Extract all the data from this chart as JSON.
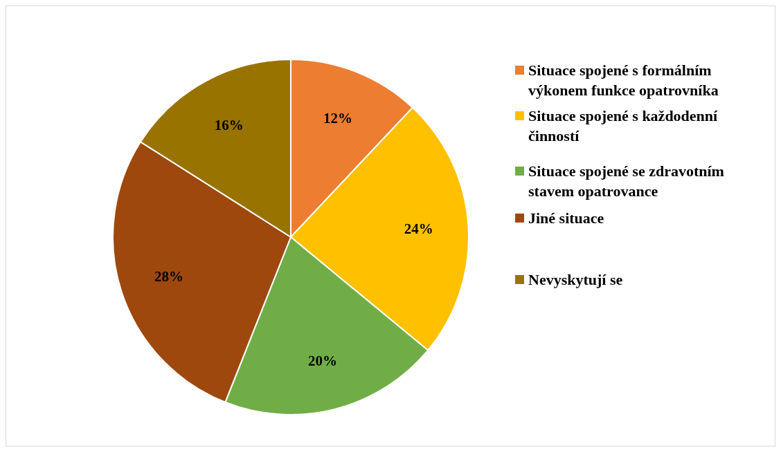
{
  "chart_data": {
    "type": "pie",
    "categories": [
      "Situace spojené s formálním výkonem funkce opatrovníka",
      "Situace spojené s každodenní činností",
      "Situace spojené se zdravotním stavem opatrovance",
      "Jiné situace",
      "Nevyskytují se"
    ],
    "values": [
      12,
      24,
      20,
      28,
      16
    ],
    "colors": [
      "#ed7d31",
      "#ffc000",
      "#70ad47",
      "#9e480e",
      "#997300"
    ],
    "value_labels": [
      "12%",
      "24%",
      "20%",
      "28%",
      "16%"
    ],
    "legend": "right"
  }
}
